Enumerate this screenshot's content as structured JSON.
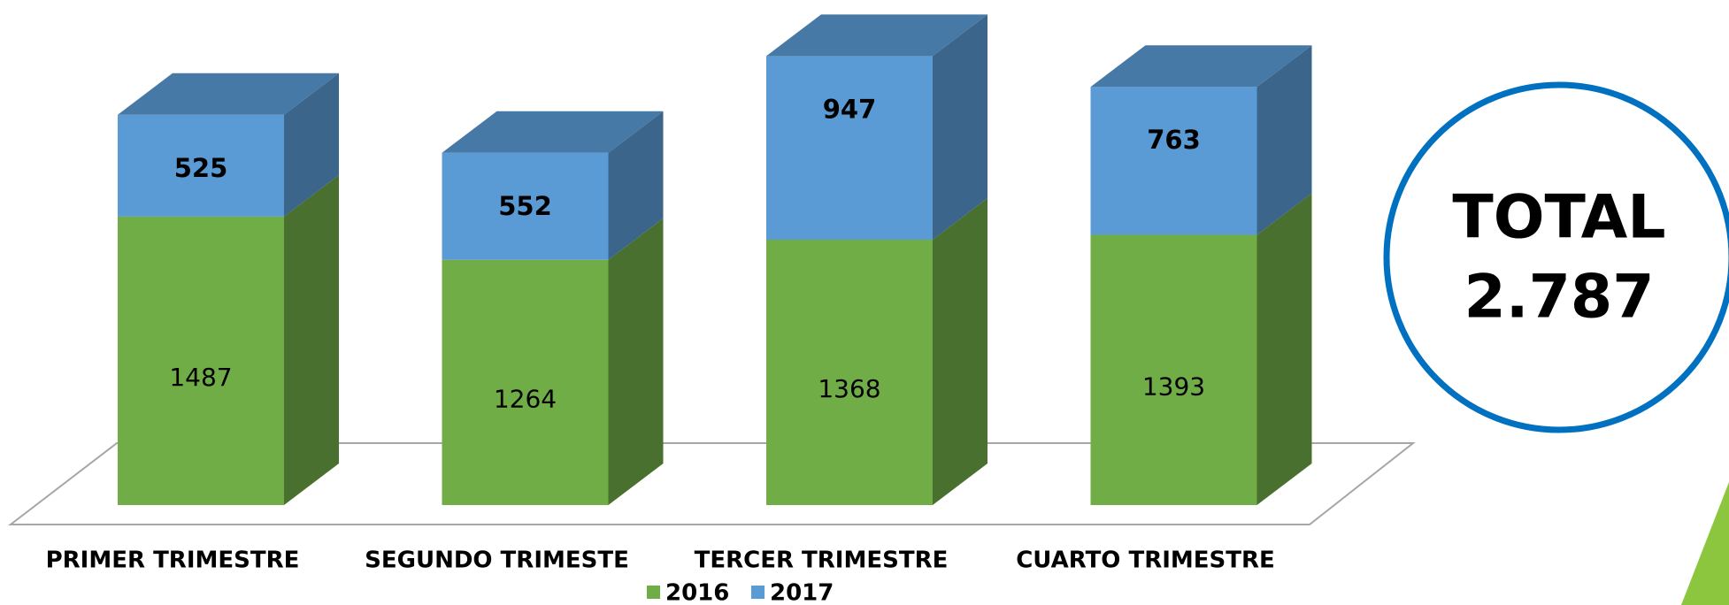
{
  "chart_data": {
    "type": "bar3d_stacked",
    "categories": [
      "PRIMER TRIMESTRE",
      "SEGUNDO  TRIMESTE",
      "TERCER TRIMESTRE",
      "CUARTO TRIMESTRE"
    ],
    "series": [
      {
        "name": "2016",
        "color": "#70ad47",
        "values": [
          1487,
          1264,
          1368,
          1393
        ]
      },
      {
        "name": "2017",
        "color": "#5b9bd5",
        "values": [
          525,
          552,
          947,
          763
        ]
      }
    ],
    "annotation": {
      "title": "TOTAL",
      "value": "2.787"
    }
  }
}
